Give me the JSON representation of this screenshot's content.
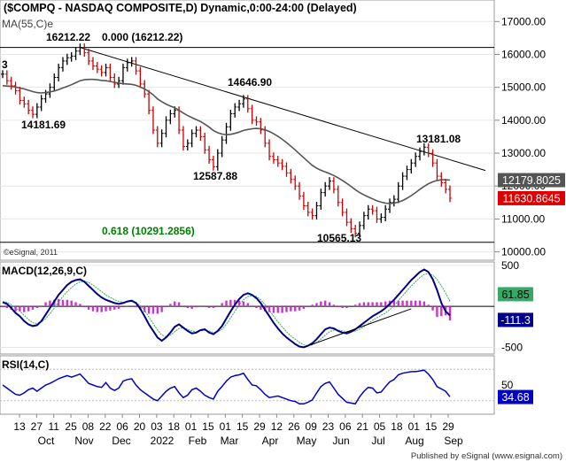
{
  "header": {
    "title": "($COMPQ - NASDAQ COMPOSITE,D) Dynamic,0:00-24:00 (Delayed)",
    "ma_label": "MA(55,C)e",
    "copyright": "©eSignal, 2011",
    "footer": "Published by eSignal (www.esignal.com)"
  },
  "chart_data": [
    {
      "type": "line",
      "name": "price",
      "ylim": [
        9800,
        17600
      ],
      "y_ticks": [
        10000,
        11000,
        12000,
        13000,
        14000,
        15000,
        16000,
        17000
      ],
      "y_tick_labels": [
        "10000.00",
        "11000.00",
        "12000.00",
        "13000.00",
        "14000.00",
        "15000.00",
        "16000.00",
        "17000.00"
      ],
      "x_tick_labels": [
        "13",
        "27",
        "11",
        "25",
        "08",
        "22",
        "06",
        "20",
        "03",
        "18",
        "01",
        "15",
        "01",
        "15",
        "29",
        "12",
        "26",
        "09",
        "23",
        "06",
        "21",
        "05",
        "18",
        "01",
        "15",
        "29"
      ],
      "x_month_labels": [
        "Oct",
        "Nov",
        "Dec",
        "2022",
        "Feb",
        "Mar",
        "Apr",
        "May",
        "Jun",
        "Jul",
        "Aug",
        "Sep"
      ],
      "series": [
        {
          "values": [
            15400,
            15200,
            15050,
            14900,
            14600,
            14500,
            14300,
            14181,
            14400,
            14650,
            14800,
            15000,
            15300,
            15600,
            15800,
            15900,
            15950,
            16100,
            16212,
            16050,
            15800,
            15650,
            15550,
            15450,
            15600,
            15300,
            15100,
            15200,
            15600,
            15750,
            15800,
            15500,
            15100,
            14800,
            14300,
            13700,
            13300,
            13600,
            14000,
            14200,
            14300,
            13700,
            13200,
            13300,
            13600,
            13700,
            13500,
            13100,
            12800,
            12588,
            13000,
            13400,
            13800,
            14200,
            14400,
            14500,
            14646,
            14350,
            14000,
            13950,
            13700,
            13300,
            12900,
            12800,
            12700,
            12600,
            12400,
            12200,
            12000,
            11700,
            11400,
            11200,
            11100,
            11400,
            11800,
            12000,
            12150,
            11900,
            11500,
            11200,
            10900,
            10700,
            10565,
            10800,
            11100,
            11300,
            11250,
            11000,
            11050,
            11300,
            11500,
            11600,
            12000,
            12300,
            12500,
            12700,
            12900,
            13050,
            13181,
            13000,
            12700,
            12300,
            12100,
            11900,
            11630
          ]
        },
        {
          "values": [
            15050,
            15040,
            15030,
            15010,
            14980,
            14950,
            14910,
            14870,
            14840,
            14830,
            14840,
            14860,
            14890,
            14930,
            14980,
            15030,
            15080,
            15140,
            15200,
            15230,
            15240,
            15240,
            15230,
            15210,
            15200,
            15180,
            15150,
            15130,
            15110,
            15100,
            15090,
            15060,
            15010,
            14950,
            14870,
            14770,
            14650,
            14560,
            14490,
            14430,
            14380,
            14300,
            14220,
            14140,
            14080,
            14020,
            13960,
            13880,
            13790,
            13690,
            13620,
            13580,
            13560,
            13570,
            13600,
            13640,
            13690,
            13720,
            13740,
            13750,
            13740,
            13710,
            13660,
            13590,
            13510,
            13420,
            13320,
            13210,
            13100,
            12980,
            12860,
            12740,
            12630,
            12540,
            12480,
            12430,
            12380,
            12320,
            12250,
            12170,
            12080,
            11990,
            11890,
            11800,
            11730,
            11670,
            11610,
            11550,
            11510,
            11480,
            11470,
            11480,
            11510,
            11560,
            11630,
            11710,
            11800,
            11900,
            11990,
            12070,
            12130,
            12170,
            12190,
            12190,
            12180
          ]
        }
      ],
      "annotations": [
        "16212.22",
        "0.000 (16212.22)",
        "14181.69",
        "14646.90",
        "12587.88",
        "13181.08",
        "0.618 (10291.2856)",
        "10565.13"
      ],
      "price_tags": [
        "12179.8025",
        "11630.8645"
      ],
      "retracement_levels": [
        16212.22,
        10291.2856
      ],
      "trendline": [
        [
          18,
          16212.22
        ],
        [
          104,
          12800
        ]
      ]
    },
    {
      "type": "line",
      "name": "macd",
      "label": "MACD(12,26,9,C)",
      "ylim": [
        -560,
        520
      ],
      "y_tick_labels": [
        "500",
        "-500"
      ],
      "value_tags": [
        "61.85",
        "-111.3"
      ],
      "series": [
        {
          "values": [
            50,
            30,
            -20,
            -80,
            -120,
            -180,
            -220,
            -240,
            -230,
            -180,
            -100,
            -20,
            60,
            140,
            200,
            260,
            300,
            320,
            330,
            300,
            250,
            200,
            150,
            110,
            80,
            60,
            40,
            30,
            40,
            60,
            70,
            40,
            -30,
            -120,
            -220,
            -300,
            -380,
            -420,
            -380,
            -320,
            -250,
            -220,
            -260,
            -300,
            -330,
            -320,
            -290,
            -280,
            -320,
            -340,
            -300,
            -240,
            -150,
            -60,
            20,
            90,
            140,
            160,
            140,
            100,
            40,
            -40,
            -120,
            -200,
            -270,
            -330,
            -380,
            -420,
            -460,
            -490,
            -500,
            -480,
            -450,
            -400,
            -340,
            -280,
            -260,
            -270,
            -300,
            -320,
            -330,
            -310,
            -280,
            -240,
            -200,
            -160,
            -120,
            -90,
            -60,
            -20,
            30,
            80,
            140,
            200,
            260,
            320,
            370,
            420,
            450,
            420,
            330,
            200,
            40,
            -60,
            -111
          ]
        },
        {
          "values": [
            60,
            50,
            20,
            -20,
            -60,
            -110,
            -160,
            -200,
            -210,
            -190,
            -150,
            -90,
            -20,
            50,
            120,
            180,
            230,
            270,
            300,
            310,
            290,
            260,
            220,
            180,
            140,
            110,
            80,
            60,
            50,
            55,
            60,
            50,
            10,
            -50,
            -130,
            -210,
            -290,
            -350,
            -370,
            -350,
            -310,
            -270,
            -260,
            -280,
            -300,
            -310,
            -300,
            -290,
            -300,
            -320,
            -310,
            -280,
            -220,
            -140,
            -60,
            20,
            80,
            120,
            130,
            120,
            80,
            20,
            -50,
            -120,
            -190,
            -250,
            -310,
            -360,
            -400,
            -440,
            -470,
            -480,
            -470,
            -440,
            -400,
            -350,
            -310,
            -290,
            -290,
            -300,
            -310,
            -310,
            -300,
            -280,
            -250,
            -210,
            -170,
            -140,
            -110,
            -80,
            -40,
            10,
            70,
            130,
            190,
            250,
            300,
            350,
            390,
            400,
            380,
            330,
            250,
            160,
            62
          ]
        }
      ],
      "histogram": [
        -10,
        -20,
        -40,
        -60,
        -60,
        -70,
        -60,
        -40,
        -20,
        10,
        50,
        70,
        80,
        90,
        80,
        80,
        70,
        50,
        30,
        -10,
        -40,
        -60,
        -70,
        -70,
        -60,
        -50,
        -40,
        -30,
        -10,
        5,
        10,
        -10,
        -40,
        -70,
        -90,
        -90,
        -90,
        -70,
        -10,
        30,
        60,
        50,
        0,
        -20,
        -30,
        -10,
        10,
        10,
        -20,
        -20,
        10,
        40,
        70,
        80,
        80,
        70,
        60,
        40,
        10,
        -20,
        -40,
        -60,
        -70,
        -80,
        -80,
        -80,
        -70,
        -60,
        -60,
        -50,
        -30,
        0,
        20,
        40,
        60,
        70,
        50,
        20,
        -10,
        -20,
        -20,
        0,
        20,
        40,
        50,
        50,
        50,
        50,
        50,
        60,
        70,
        70,
        70,
        70,
        70,
        70,
        70,
        70,
        60,
        20,
        -50,
        -130,
        -120,
        -110,
        -173
      ]
    },
    {
      "type": "line",
      "name": "rsi",
      "label": "RSI(14,C)",
      "ylim": [
        15,
        85
      ],
      "y_tick_labels": [
        "50"
      ],
      "value_tags": [
        "34.68"
      ],
      "series": [
        {
          "values": [
            50,
            46,
            42,
            38,
            37,
            40,
            44,
            46,
            42,
            46,
            50,
            52,
            55,
            58,
            60,
            62,
            60,
            62,
            64,
            58,
            52,
            50,
            48,
            47,
            53,
            46,
            43,
            46,
            55,
            57,
            58,
            50,
            44,
            40,
            36,
            32,
            30,
            36,
            42,
            46,
            48,
            40,
            34,
            37,
            44,
            46,
            42,
            37,
            34,
            32,
            42,
            48,
            55,
            60,
            62,
            63,
            65,
            57,
            50,
            49,
            44,
            38,
            34,
            35,
            36,
            34,
            32,
            30,
            29,
            26,
            26,
            28,
            31,
            40,
            48,
            52,
            54,
            46,
            38,
            33,
            28,
            27,
            26,
            35,
            42,
            47,
            46,
            40,
            41,
            48,
            54,
            57,
            63,
            65,
            66,
            67,
            67,
            68,
            69,
            64,
            57,
            48,
            45,
            42,
            35
          ]
        }
      ]
    }
  ]
}
